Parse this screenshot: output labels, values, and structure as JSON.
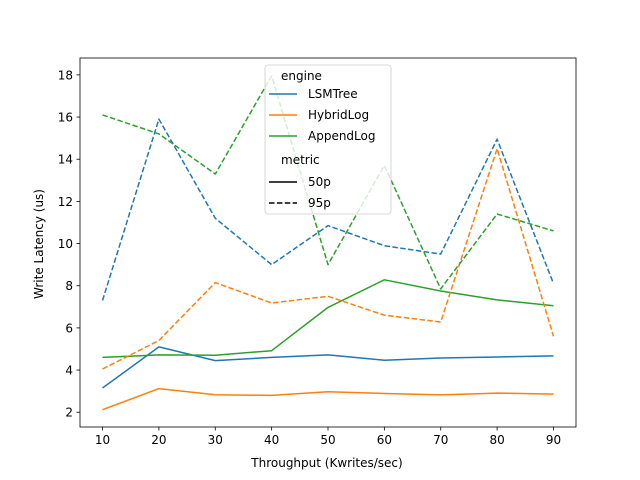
{
  "chart_data": {
    "type": "line",
    "xlabel": "Throughput (Kwrites/sec)",
    "ylabel": "Write Latency (us)",
    "x": [
      10,
      20,
      30,
      40,
      50,
      60,
      70,
      80,
      90
    ],
    "xlim": [
      6,
      94
    ],
    "ylim": [
      1.3,
      18.8
    ],
    "xticks": [
      10,
      20,
      30,
      40,
      50,
      60,
      70,
      80,
      90
    ],
    "yticks": [
      2,
      4,
      6,
      8,
      10,
      12,
      14,
      16,
      18
    ],
    "grid": false,
    "legend": {
      "placement": "top-center",
      "engine_title": "engine",
      "metric_title": "metric",
      "engines": [
        "LSMTree",
        "HybridLog",
        "AppendLog"
      ],
      "metrics": [
        "50p",
        "95p"
      ]
    },
    "series": [
      {
        "engine": "LSMTree",
        "metric": "50p",
        "color": "#1f77b4",
        "dash": "solid",
        "values": [
          3.15,
          5.1,
          4.45,
          4.6,
          4.72,
          4.47,
          4.57,
          4.62,
          4.67
        ]
      },
      {
        "engine": "HybridLog",
        "metric": "50p",
        "color": "#ff7f0e",
        "dash": "solid",
        "values": [
          2.12,
          3.12,
          2.83,
          2.8,
          2.97,
          2.89,
          2.82,
          2.91,
          2.86
        ]
      },
      {
        "engine": "AppendLog",
        "metric": "50p",
        "color": "#2ca02c",
        "dash": "solid",
        "values": [
          4.6,
          4.72,
          4.7,
          4.92,
          6.97,
          8.28,
          7.75,
          7.33,
          7.05
        ]
      },
      {
        "engine": "LSMTree",
        "metric": "95p",
        "color": "#1f77b4",
        "dash": "dashed",
        "values": [
          7.3,
          15.9,
          11.2,
          9.0,
          10.85,
          9.9,
          9.5,
          14.95,
          8.1
        ]
      },
      {
        "engine": "HybridLog",
        "metric": "95p",
        "color": "#ff7f0e",
        "dash": "dashed",
        "values": [
          4.05,
          5.4,
          8.15,
          7.18,
          7.5,
          6.6,
          6.28,
          14.5,
          5.6
        ]
      },
      {
        "engine": "AppendLog",
        "metric": "95p",
        "color": "#2ca02c",
        "dash": "dashed",
        "values": [
          16.1,
          15.2,
          13.3,
          17.95,
          9.0,
          13.7,
          7.85,
          11.4,
          10.6
        ]
      }
    ]
  }
}
